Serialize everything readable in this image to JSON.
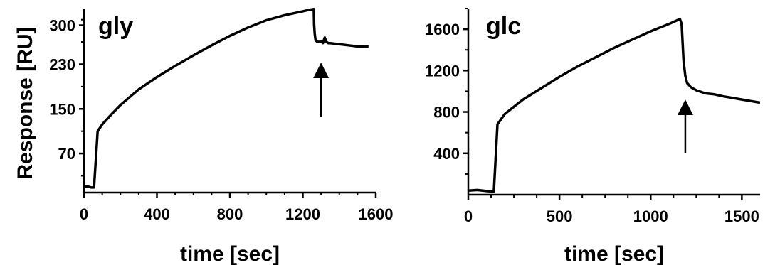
{
  "figure": {
    "ylabel": "Response [RU]"
  },
  "chart_data": [
    {
      "type": "line",
      "title": "gly",
      "xlabel": "time [sec]",
      "ylabel": "Response [RU]",
      "xlim": [
        0,
        1600
      ],
      "ylim": [
        0,
        330
      ],
      "xticks": [
        0,
        400,
        800,
        1200,
        1600
      ],
      "yticks": [
        70,
        150,
        230,
        300
      ],
      "grid": false,
      "annotation": "upward arrow under the curve near x = 1300 (start of dissociation)",
      "arrow_at_x": 1300,
      "series": [
        {
          "color": "#000000",
          "x": [
            0,
            20,
            40,
            55,
            65,
            75,
            100,
            150,
            200,
            300,
            400,
            500,
            600,
            700,
            800,
            900,
            1000,
            1100,
            1200,
            1240,
            1260,
            1262,
            1265,
            1270,
            1280,
            1300,
            1310,
            1320,
            1330,
            1340,
            1350,
            1400,
            1450,
            1500,
            1540,
            1560
          ],
          "y": [
            10,
            11,
            9,
            9,
            60,
            110,
            122,
            140,
            157,
            185,
            207,
            227,
            246,
            264,
            281,
            296,
            309,
            318,
            325,
            328,
            329,
            300,
            285,
            273,
            270,
            271,
            268,
            278,
            270,
            268,
            268,
            266,
            264,
            262,
            262,
            262
          ]
        }
      ]
    },
    {
      "type": "line",
      "title": "glc",
      "xlabel": "time [sec]",
      "ylabel": "",
      "xlim": [
        0,
        1600
      ],
      "ylim": [
        0,
        1800
      ],
      "xticks": [
        0,
        500,
        1000,
        1500
      ],
      "yticks": [
        400,
        800,
        1200,
        1600
      ],
      "grid": false,
      "annotation": "upward arrow under the curve near x = 1190 (start of dissociation)",
      "arrow_at_x": 1190,
      "series": [
        {
          "color": "#000000",
          "x": [
            0,
            50,
            100,
            140,
            150,
            160,
            180,
            200,
            250,
            300,
            400,
            500,
            600,
            700,
            800,
            900,
            1000,
            1100,
            1150,
            1160,
            1170,
            1180,
            1190,
            1200,
            1220,
            1250,
            1300,
            1350,
            1400,
            1450,
            1500,
            1550,
            1600
          ],
          "y": [
            40,
            45,
            35,
            30,
            350,
            680,
            730,
            780,
            850,
            920,
            1030,
            1140,
            1240,
            1330,
            1420,
            1500,
            1580,
            1650,
            1690,
            1700,
            1650,
            1300,
            1150,
            1080,
            1040,
            1010,
            980,
            970,
            950,
            935,
            920,
            905,
            890
          ]
        }
      ]
    }
  ]
}
